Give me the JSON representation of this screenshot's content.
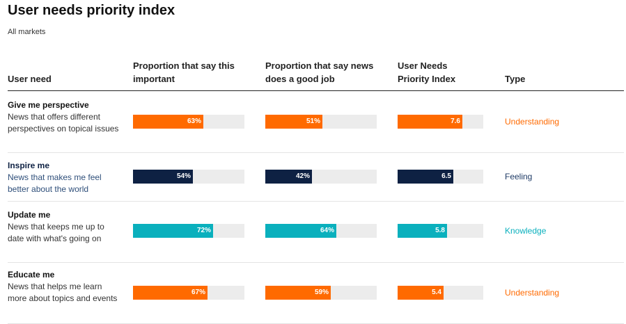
{
  "title": "User needs priority index",
  "subtitle": "All markets",
  "colors": {
    "Understanding": "#ff6a00",
    "Feeling": "#0e2143",
    "Knowledge": "#0ab0bd",
    "track": "#ececec"
  },
  "chart_data": {
    "type": "bar",
    "title": "User needs priority index",
    "subtitle": "All markets",
    "columns": {
      "need": "User need",
      "important": "Proportion that say this important",
      "good_job": "Proportion that say news does a good job",
      "index": "User Needs Priority Index",
      "type": "Type"
    },
    "scales": {
      "important_max": 100,
      "good_job_max": 100,
      "index_max": 10
    },
    "rows": [
      {
        "name": "Give me perspective",
        "description": "News that offers different perspectives on topical issues",
        "important": 63,
        "important_label": "63%",
        "good_job": 51,
        "good_job_label": "51%",
        "index": 7.6,
        "index_label": "7.6",
        "type": "Understanding"
      },
      {
        "name": "Inspire me",
        "description": "News that makes me feel better about the world",
        "important": 54,
        "important_label": "54%",
        "good_job": 42,
        "good_job_label": "42%",
        "index": 6.5,
        "index_label": "6.5",
        "type": "Feeling"
      },
      {
        "name": "Update me",
        "description": "News that keeps me up to date with what's going on",
        "important": 72,
        "important_label": "72%",
        "good_job": 64,
        "good_job_label": "64%",
        "index": 5.8,
        "index_label": "5.8",
        "type": "Knowledge"
      },
      {
        "name": "Educate me",
        "description": "News that helps me learn more about topics and events",
        "important": 67,
        "important_label": "67%",
        "good_job": 59,
        "good_job_label": "59%",
        "index": 5.4,
        "index_label": "5.4",
        "type": "Understanding"
      }
    ]
  }
}
